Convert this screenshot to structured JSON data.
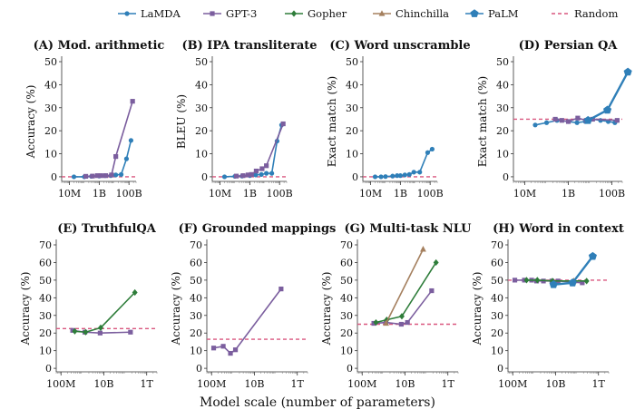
{
  "xlabel": "Model scale (number of parameters)",
  "legend": [
    {
      "name": "LaMDA",
      "color": "#2f7fb8",
      "marker": "circle"
    },
    {
      "name": "GPT-3",
      "color": "#7b5e9e",
      "marker": "square"
    },
    {
      "name": "Gopher",
      "color": "#2e7d3a",
      "marker": "diamond"
    },
    {
      "name": "Chinchilla",
      "color": "#a5805f",
      "marker": "triangle"
    },
    {
      "name": "PaLM",
      "color": "#2f7fb8",
      "marker": "pentagon"
    },
    {
      "name": "Random",
      "color": "#d9577f",
      "marker": "dash"
    }
  ],
  "chart_data": [
    {
      "type": "line",
      "title": "(A) Mod. arithmetic",
      "ylabel": "Accuracy (%)",
      "xscale": "log",
      "xlim": [
        3000000.0,
        300000000000.0
      ],
      "ylim": [
        -2,
        50
      ],
      "xticks": [
        10000000.0,
        1000000000.0,
        100000000000.0
      ],
      "xticklabels": [
        "10M",
        "1B",
        "100B"
      ],
      "yticks": [
        0,
        10,
        20,
        30,
        40,
        50
      ],
      "random": 0,
      "series": [
        {
          "name": "LaMDA",
          "x": [
            20000000.0,
            100000000.0,
            300000000.0,
            1000000000.0,
            2500000000.0,
            6000000000.0,
            13000000000.0,
            30000000000.0,
            68000000000.0,
            137000000000.0
          ],
          "y": [
            0,
            0,
            0.2,
            0.3,
            0.5,
            0.5,
            0.8,
            1,
            7.8,
            15.8
          ]
        },
        {
          "name": "GPT-3",
          "x": [
            125000000.0,
            350000000.0,
            760000000.0,
            1300000000.0,
            2700000000.0,
            6700000000.0,
            13000000000.0,
            175000000000.0
          ],
          "y": [
            0.2,
            0.3,
            0.5,
            0.5,
            0.5,
            0.8,
            8.8,
            32.8
          ]
        }
      ]
    },
    {
      "type": "line",
      "title": "(B) IPA transliterate",
      "ylabel": "BLEU (%)",
      "xscale": "log",
      "xlim": [
        3000000.0,
        300000000000.0
      ],
      "ylim": [
        -2,
        50
      ],
      "xticks": [
        10000000.0,
        1000000000.0,
        100000000000.0
      ],
      "xticklabels": [
        "10M",
        "1B",
        "100B"
      ],
      "yticks": [
        0,
        10,
        20,
        30,
        40,
        50
      ],
      "random": 0,
      "series": [
        {
          "name": "LaMDA",
          "x": [
            20000000.0,
            100000000.0,
            300000000.0,
            1000000000.0,
            2500000000.0,
            6000000000.0,
            13000000000.0,
            30000000000.0,
            68000000000.0,
            137000000000.0
          ],
          "y": [
            0,
            0.2,
            0.3,
            0.5,
            0.8,
            1,
            1.5,
            1.5,
            15.5,
            22.5
          ]
        },
        {
          "name": "GPT-3",
          "x": [
            125000000.0,
            350000000.0,
            760000000.0,
            1300000000.0,
            2700000000.0,
            6700000000.0,
            13000000000.0,
            175000000000.0
          ],
          "y": [
            0.3,
            0.5,
            0.8,
            1,
            2.5,
            3.5,
            4.8,
            23
          ]
        }
      ]
    },
    {
      "type": "line",
      "title": "(C) Word unscramble",
      "ylabel": "Exact match (%)",
      "xscale": "log",
      "xlim": [
        3000000.0,
        300000000000.0
      ],
      "ylim": [
        -2,
        50
      ],
      "xticks": [
        10000000.0,
        1000000000.0,
        100000000000.0
      ],
      "xticklabels": [
        "10M",
        "1B",
        "100B"
      ],
      "yticks": [
        0,
        10,
        20,
        30,
        40,
        50
      ],
      "random": 0,
      "series": [
        {
          "name": "LaMDA",
          "x": [
            20000000.0,
            50000000.0,
            100000000.0,
            300000000.0,
            600000000.0,
            1000000000.0,
            2000000000.0,
            4000000000.0,
            8000000000.0,
            20000000000.0,
            68000000000.0,
            137000000000.0
          ],
          "y": [
            0,
            0,
            0.1,
            0.3,
            0.5,
            0.5,
            0.8,
            1,
            2,
            2,
            10.5,
            12
          ]
        }
      ]
    },
    {
      "type": "line",
      "title": "(D) Persian QA",
      "ylabel": "Exact match (%)",
      "xscale": "log",
      "xlim": [
        3000000.0,
        300000000000.0
      ],
      "ylim": [
        -2,
        50
      ],
      "xticks": [
        10000000.0,
        1000000000.0,
        100000000000.0
      ],
      "xticklabels": [
        "10M",
        "1B",
        "100B"
      ],
      "yticks": [
        0,
        10,
        20,
        30,
        40,
        50
      ],
      "random": 25,
      "series": [
        {
          "name": "LaMDA",
          "x": [
            30000000.0,
            100000000.0,
            300000000.0,
            1000000000.0,
            2500000000.0,
            6000000000.0,
            13000000000.0,
            30000000000.0,
            68000000000.0,
            137000000000.0
          ],
          "y": [
            22.5,
            23.5,
            24.5,
            24,
            23.5,
            24,
            25,
            24.5,
            24,
            23.5
          ]
        },
        {
          "name": "GPT-3",
          "x": [
            250000000.0,
            500000000.0,
            1000000000.0,
            2700000000.0,
            6700000000.0,
            13000000000.0,
            175000000000.0
          ],
          "y": [
            25,
            24.5,
            24,
            25.5,
            24.5,
            25,
            24.5
          ]
        },
        {
          "name": "PaLM",
          "x": [
            8000000000.0,
            62000000000.0,
            540000000000.0
          ],
          "y": [
            24.5,
            29,
            45.5
          ]
        }
      ]
    },
    {
      "type": "line",
      "title": "(E) TruthfulQA",
      "ylabel": "Accuracy (%)",
      "xscale": "log",
      "xlim": [
        60000000.0,
        3000000000000.0
      ],
      "ylim": [
        -2,
        70
      ],
      "xticks": [
        100000000.0,
        10000000000.0,
        1000000000000.0
      ],
      "xticklabels": [
        "100M",
        "10B",
        "1T"
      ],
      "yticks": [
        0,
        10,
        20,
        30,
        40,
        50,
        60,
        70
      ],
      "random": 22.5,
      "series": [
        {
          "name": "GPT-3",
          "x": [
            350000000.0,
            1300000000.0,
            6700000000.0,
            175000000000.0
          ],
          "y": [
            21.5,
            20.5,
            20,
            20.5
          ]
        },
        {
          "name": "Gopher",
          "x": [
            440000000.0,
            1400000000.0,
            7100000000.0,
            280000000000.0
          ],
          "y": [
            21,
            20.5,
            23,
            43
          ]
        }
      ]
    },
    {
      "type": "line",
      "title": "(F) Grounded mappings",
      "ylabel": "Accuracy (%)",
      "xscale": "log",
      "xlim": [
        60000000.0,
        3000000000000.0
      ],
      "ylim": [
        -2,
        70
      ],
      "xticks": [
        100000000.0,
        10000000000.0,
        1000000000000.0
      ],
      "xticklabels": [
        "100M",
        "10B",
        "1T"
      ],
      "yticks": [
        0,
        10,
        20,
        30,
        40,
        50,
        60,
        70
      ],
      "random": 16.5,
      "series": [
        {
          "name": "GPT-3",
          "x": [
            125000000.0,
            350000000.0,
            760000000.0,
            1300000000.0,
            175000000000.0
          ],
          "y": [
            11.5,
            12.5,
            8.5,
            10.5,
            45
          ]
        }
      ]
    },
    {
      "type": "line",
      "title": "(G) Multi-task NLU",
      "ylabel": "Accuracy (%)",
      "xscale": "log",
      "xlim": [
        60000000.0,
        3000000000000.0
      ],
      "ylim": [
        -2,
        70
      ],
      "xticks": [
        100000000.0,
        10000000000.0,
        1000000000000.0
      ],
      "xticklabels": [
        "100M",
        "10B",
        "1T"
      ],
      "yticks": [
        0,
        10,
        20,
        30,
        40,
        50,
        60,
        70
      ],
      "random": 25,
      "series": [
        {
          "name": "GPT-3",
          "x": [
            350000000.0,
            1300000000.0,
            6700000000.0,
            13000000000.0,
            175000000000.0
          ],
          "y": [
            25.5,
            26,
            25,
            26,
            44
          ]
        },
        {
          "name": "Gopher",
          "x": [
            440000000.0,
            1400000000.0,
            7100000000.0,
            280000000000.0
          ],
          "y": [
            26,
            27.5,
            29.5,
            60
          ]
        },
        {
          "name": "Chinchilla",
          "x": [
            1300000000.0,
            70000000000.0
          ],
          "y": [
            25.5,
            67.5
          ]
        }
      ]
    },
    {
      "type": "line",
      "title": "(H) Word in context",
      "ylabel": "Accuracy (%)",
      "xscale": "log",
      "xlim": [
        60000000.0,
        3000000000000.0
      ],
      "ylim": [
        -2,
        70
      ],
      "xticks": [
        100000000.0,
        10000000000.0,
        1000000000000.0
      ],
      "xticklabels": [
        "100M",
        "10B",
        "1T"
      ],
      "yticks": [
        0,
        10,
        20,
        30,
        40,
        50,
        60,
        70
      ],
      "random": 50,
      "series": [
        {
          "name": "GPT-3",
          "x": [
            125000000.0,
            350000000.0,
            760000000.0,
            1300000000.0,
            2700000000.0,
            6700000000.0,
            13000000000.0,
            175000000000.0
          ],
          "y": [
            50,
            50,
            50,
            49.5,
            49.5,
            49.5,
            49.5,
            48.5
          ]
        },
        {
          "name": "Gopher",
          "x": [
            440000000.0,
            1400000000.0,
            7100000000.0,
            280000000000.0
          ],
          "y": [
            50,
            50,
            49.5,
            49.5
          ]
        },
        {
          "name": "Chinchilla",
          "x": [
            70000000000.0
          ],
          "y": [
            49.5
          ]
        },
        {
          "name": "PaLM",
          "x": [
            8000000000.0,
            62000000000.0,
            540000000000.0
          ],
          "y": [
            47.5,
            48.5,
            63.5
          ]
        }
      ]
    }
  ]
}
